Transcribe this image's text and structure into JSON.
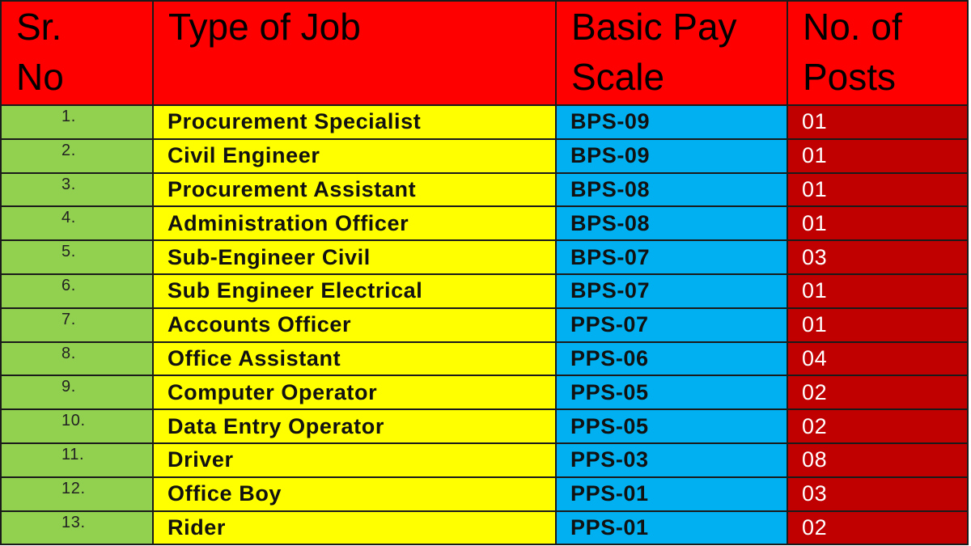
{
  "headers": {
    "sr": [
      "Sr.",
      "No"
    ],
    "job": [
      "Type of Job",
      ""
    ],
    "pay": [
      "Basic Pay",
      "Scale"
    ],
    "posts": [
      "No. of",
      "Posts"
    ]
  },
  "colors": {
    "header": "#ff0000",
    "sr": "#92d050",
    "job": "#ffff00",
    "pay": "#00b0f0",
    "posts": "#c00000"
  },
  "rows": [
    {
      "sr": "1.",
      "job": "Procurement Specialist",
      "pay": "BPS-09",
      "posts": "01"
    },
    {
      "sr": "2.",
      "job": "Civil Engineer",
      "pay": "BPS-09",
      "posts": "01"
    },
    {
      "sr": "3.",
      "job": "Procurement Assistant",
      "pay": "BPS-08",
      "posts": "01"
    },
    {
      "sr": "4.",
      "job": "Administration Officer",
      "pay": "BPS-08",
      "posts": "01"
    },
    {
      "sr": "5.",
      "job": "Sub-Engineer Civil",
      "pay": "BPS-07",
      "posts": "03"
    },
    {
      "sr": "6.",
      "job": "Sub Engineer Electrical",
      "pay": "BPS-07",
      "posts": "01"
    },
    {
      "sr": "7.",
      "job": "Accounts Officer",
      "pay": "PPS-07",
      "posts": "01"
    },
    {
      "sr": "8.",
      "job": "Office Assistant",
      "pay": "PPS-06",
      "posts": "04"
    },
    {
      "sr": "9.",
      "job": "Computer Operator",
      "pay": "PPS-05",
      "posts": "02"
    },
    {
      "sr": "10.",
      "job": "Data Entry Operator",
      "pay": "PPS-05",
      "posts": "02"
    },
    {
      "sr": "11.",
      "job": "Driver",
      "pay": "PPS-03",
      "posts": "08"
    },
    {
      "sr": "12.",
      "job": "Office Boy",
      "pay": "PPS-01",
      "posts": "03"
    },
    {
      "sr": "13.",
      "job": "Rider",
      "pay": "PPS-01",
      "posts": "02"
    }
  ]
}
